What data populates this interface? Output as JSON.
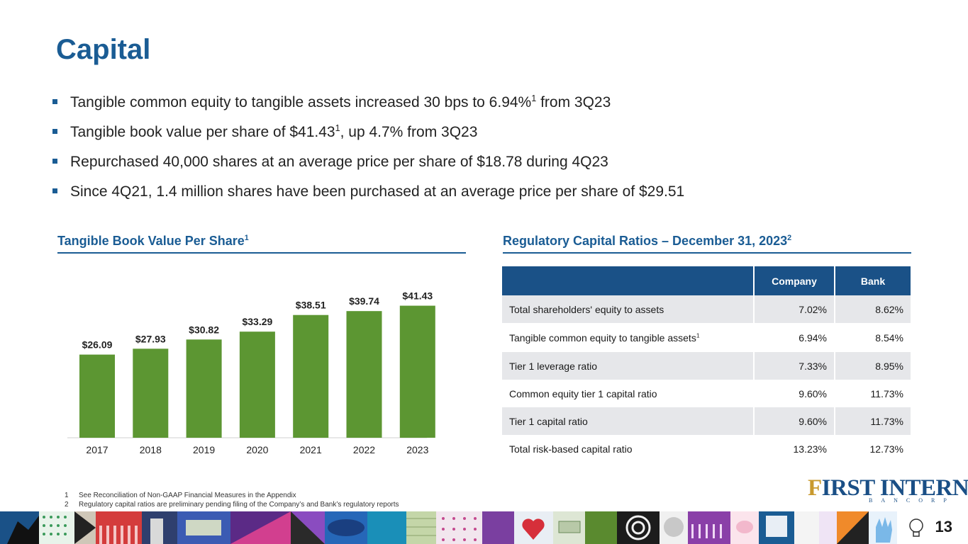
{
  "page": {
    "title": "Capital",
    "page_number": "13"
  },
  "bullets": [
    {
      "pre": "Tangible common equity to tangible assets increased 30 bps to 6.94%",
      "sup": "1",
      "post": " from 3Q23"
    },
    {
      "pre": "Tangible book value per share of $41.43",
      "sup": "1",
      "post": ", up 4.7% from 3Q23"
    },
    {
      "pre": "Repurchased 40,000 shares at an average price per share of $18.78 during 4Q23",
      "sup": "",
      "post": ""
    },
    {
      "pre": "Since 4Q21, 1.4 million shares have been purchased at an average price per share of $29.51",
      "sup": "",
      "post": ""
    }
  ],
  "chart_section": {
    "title": "Tangible Book Value Per Share",
    "sup": "1"
  },
  "table_section": {
    "title": "Regulatory Capital Ratios – December 31, 2023",
    "sup": "2"
  },
  "chart_data": {
    "type": "bar",
    "title": "Tangible Book Value Per Share",
    "categories": [
      "2017",
      "2018",
      "2019",
      "2020",
      "2021",
      "2022",
      "2023"
    ],
    "values": [
      26.09,
      27.93,
      30.82,
      33.29,
      38.51,
      39.74,
      41.43
    ],
    "labels": [
      "$26.09",
      "$27.93",
      "$30.82",
      "$33.29",
      "$38.51",
      "$39.74",
      "$41.43"
    ],
    "color": "#5c9632",
    "grid": false
  },
  "table": {
    "headers": [
      "",
      "Company",
      "Bank"
    ],
    "rows": [
      {
        "label": "Total shareholders' equity to assets",
        "sup": "",
        "company": "7.02%",
        "bank": "8.62%"
      },
      {
        "label": "Tangible common equity to tangible assets",
        "sup": "1",
        "company": "6.94%",
        "bank": "8.54%"
      },
      {
        "label": "Tier 1 leverage ratio",
        "sup": "",
        "company": "7.33%",
        "bank": "8.95%"
      },
      {
        "label": "Common equity tier 1 capital ratio",
        "sup": "",
        "company": "9.60%",
        "bank": "11.73%"
      },
      {
        "label": "Tier 1 capital ratio",
        "sup": "",
        "company": "9.60%",
        "bank": "11.73%"
      },
      {
        "label": "Total risk-based capital ratio",
        "sup": "",
        "company": "13.23%",
        "bank": "12.73%"
      }
    ]
  },
  "footnotes": [
    {
      "n": "1",
      "text": "See Reconciliation of Non-GAAP Financial Measures in the Appendix"
    },
    {
      "n": "2",
      "text": "Regulatory capital ratios are preliminary pending filing of the Company’s and Bank’s regulatory reports"
    }
  ],
  "logo": {
    "first": "F",
    "word": "IRST INTERNET",
    "sub": "BANCORP"
  },
  "colors": {
    "brand_blue": "#1a5c94",
    "table_header": "#1a5187",
    "bar_green": "#5c9632"
  }
}
